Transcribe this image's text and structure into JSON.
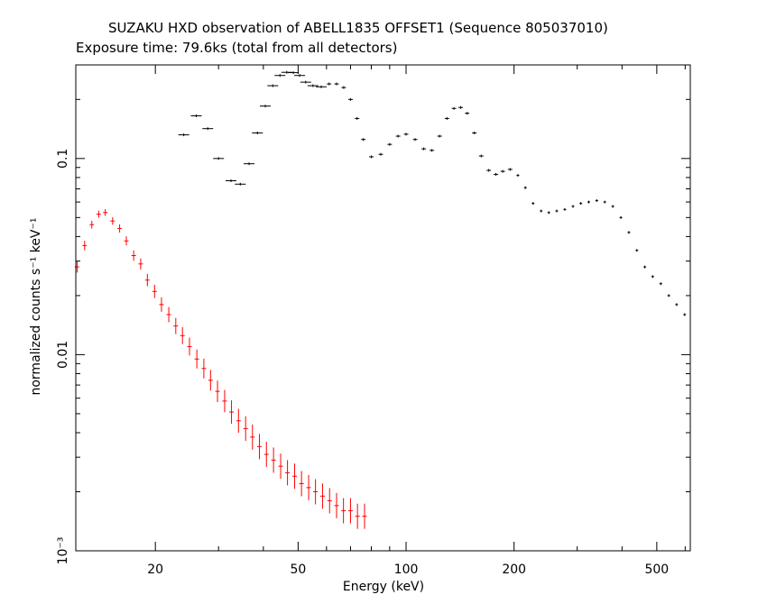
{
  "chart_data": {
    "type": "scatter",
    "title": "SUZAKU HXD observation of ABELL1835 OFFSET1 (Sequence 805037010)",
    "subtitle": "Exposure time: 79.6ks (total from all detectors)",
    "xlabel": "Energy (keV)",
    "ylabel": "normalized counts s⁻¹ keV⁻¹",
    "xscale": "log",
    "yscale": "log",
    "xlim": [
      12,
      620
    ],
    "ylim": [
      0.001,
      0.3
    ],
    "x_ticks": [
      {
        "value": 20,
        "label": "20"
      },
      {
        "value": 50,
        "label": "50"
      },
      {
        "value": 100,
        "label": "100"
      },
      {
        "value": 200,
        "label": "200"
      },
      {
        "value": 500,
        "label": "500"
      }
    ],
    "y_ticks": [
      {
        "value": 0.001,
        "label": "10⁻³"
      },
      {
        "value": 0.01,
        "label": "0.01"
      },
      {
        "value": 0.1,
        "label": "0.1"
      }
    ],
    "grid": false,
    "legend": "none",
    "series": [
      {
        "color": "#ff0000",
        "style": "crosses",
        "x": [
          12.1,
          12.7,
          13.3,
          13.9,
          14.5,
          15.2,
          15.9,
          16.6,
          17.4,
          18.2,
          19.0,
          19.9,
          20.8,
          21.8,
          22.8,
          23.8,
          24.9,
          26.1,
          27.3,
          28.5,
          29.8,
          31.2,
          32.6,
          34.1,
          35.7,
          37.3,
          39.0,
          40.8,
          42.7,
          44.7,
          46.7,
          48.9,
          51.1,
          53.5,
          55.9,
          58.5,
          61.2,
          64.0,
          66.9,
          70.0,
          73.2,
          76.6
        ],
        "y": [
          0.028,
          0.036,
          0.046,
          0.052,
          0.053,
          0.048,
          0.044,
          0.038,
          0.032,
          0.029,
          0.024,
          0.021,
          0.018,
          0.016,
          0.014,
          0.0125,
          0.011,
          0.0095,
          0.0085,
          0.0074,
          0.0065,
          0.0058,
          0.0051,
          0.0046,
          0.0042,
          0.0038,
          0.0034,
          0.0031,
          0.0029,
          0.0027,
          0.0025,
          0.0024,
          0.0022,
          0.0021,
          0.002,
          0.0019,
          0.0018,
          0.0017,
          0.0016,
          0.0016,
          0.0015,
          0.0015
        ]
      },
      {
        "color": "#000000",
        "style": "crosses",
        "x": [
          24,
          26,
          28,
          30,
          32.5,
          34.5,
          36.5,
          38.5,
          40.5,
          42.5,
          44.5,
          46.5,
          48.5,
          50.5,
          52.5,
          55,
          58,
          61,
          64,
          67,
          70,
          73,
          76,
          80,
          85,
          90,
          95,
          100,
          106,
          112,
          118,
          124,
          130,
          136,
          142,
          148,
          155,
          162,
          170,
          178,
          186,
          195,
          205,
          215,
          226,
          238,
          250,
          263,
          277,
          292,
          307,
          323,
          340,
          358,
          377,
          397,
          418,
          440,
          463,
          487,
          513,
          540,
          568,
          598
        ],
        "y": [
          0.132,
          0.165,
          0.142,
          0.1,
          0.077,
          0.074,
          0.094,
          0.135,
          0.185,
          0.235,
          0.265,
          0.275,
          0.274,
          0.265,
          0.245,
          0.235,
          0.232,
          0.24,
          0.24,
          0.23,
          0.2,
          0.16,
          0.125,
          0.102,
          0.105,
          0.118,
          0.13,
          0.133,
          0.125,
          0.112,
          0.11,
          0.13,
          0.16,
          0.18,
          0.182,
          0.17,
          0.135,
          0.103,
          0.087,
          0.083,
          0.086,
          0.088,
          0.082,
          0.071,
          0.059,
          0.054,
          0.053,
          0.054,
          0.055,
          0.057,
          0.059,
          0.06,
          0.061,
          0.06,
          0.057,
          0.05,
          0.042,
          0.034,
          0.028,
          0.025,
          0.023,
          0.02,
          0.018,
          0.016
        ]
      }
    ]
  }
}
